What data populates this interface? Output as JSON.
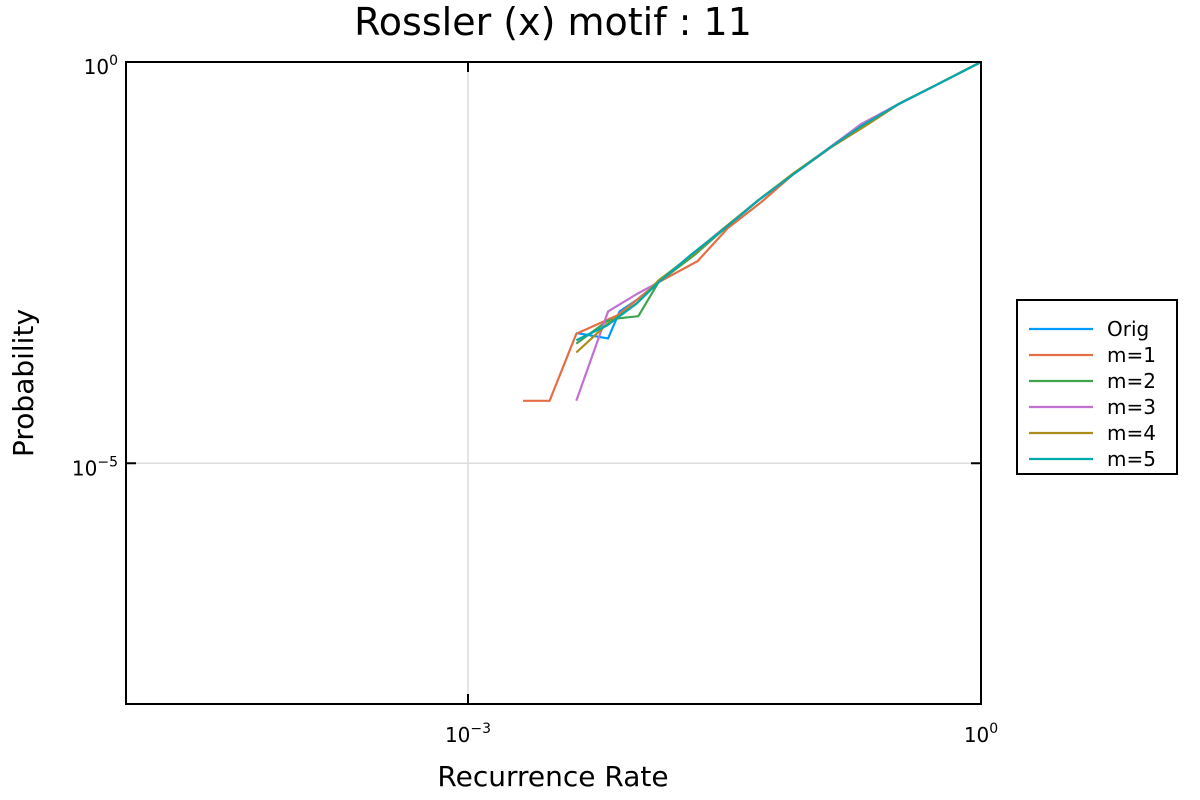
{
  "chart_data": {
    "type": "line",
    "title": "Rossler (x) motif : 11",
    "xlabel": "Recurrence Rate",
    "ylabel": "Probability",
    "xscale": "log",
    "yscale": "log",
    "xlim": [
      1e-05,
      1.0
    ],
    "ylim": [
      1e-08,
      1.0
    ],
    "grid": true,
    "legend_position": "outer-right",
    "xticks": [
      {
        "base": "10",
        "exp": "−3",
        "value": 0.001
      },
      {
        "base": "10",
        "exp": "0",
        "value": 1
      }
    ],
    "yticks": [
      {
        "base": "10",
        "exp": "−5",
        "value": 1e-05
      },
      {
        "base": "10",
        "exp": "0",
        "value": 1
      }
    ],
    "series": [
      {
        "name": "Orig",
        "color": "#009AFA",
        "x": [
          0.0043,
          0.0066,
          0.0077,
          0.0098,
          0.013,
          0.02,
          0.032,
          0.05,
          0.08,
          0.13,
          0.2,
          0.33,
          0.55,
          1.0
        ],
        "y": [
          0.00042,
          0.00036,
          0.00078,
          0.0011,
          0.0018,
          0.0039,
          0.0085,
          0.019,
          0.04,
          0.084,
          0.16,
          0.3,
          0.52,
          1.0
        ]
      },
      {
        "name": "m=1",
        "color": "#E36F47",
        "x": [
          0.0021,
          0.003,
          0.0043,
          0.0075,
          0.0098,
          0.013,
          0.022,
          0.033,
          0.052,
          0.08,
          0.13,
          0.21,
          0.33,
          0.55,
          1.0
        ],
        "y": [
          6e-05,
          6e-05,
          0.00041,
          0.0007,
          0.0011,
          0.0018,
          0.0033,
          0.0085,
          0.018,
          0.04,
          0.084,
          0.16,
          0.3,
          0.52,
          1.0
        ]
      },
      {
        "name": "m=2",
        "color": "#3EA44E",
        "x": [
          0.0043,
          0.0065,
          0.0076,
          0.0099,
          0.013,
          0.021,
          0.032,
          0.05,
          0.081,
          0.13,
          0.21,
          0.33,
          0.55,
          1.0
        ],
        "y": [
          0.00031,
          0.00059,
          0.00064,
          0.00068,
          0.0018,
          0.0039,
          0.0086,
          0.019,
          0.041,
          0.085,
          0.16,
          0.3,
          0.52,
          1.0
        ]
      },
      {
        "name": "m=3",
        "color": "#C271D2",
        "x": [
          0.0043,
          0.0066,
          0.0098,
          0.013,
          0.02,
          0.032,
          0.05,
          0.08,
          0.13,
          0.2,
          0.33,
          0.55,
          1.0
        ],
        "y": [
          6e-05,
          0.00078,
          0.0013,
          0.0018,
          0.0039,
          0.0088,
          0.019,
          0.04,
          0.086,
          0.17,
          0.3,
          0.52,
          1.0
        ]
      },
      {
        "name": "m=4",
        "color": "#AC8D18",
        "x": [
          0.0043,
          0.0065,
          0.0098,
          0.013,
          0.021,
          0.032,
          0.05,
          0.08,
          0.13,
          0.21,
          0.33,
          0.55,
          1.0
        ],
        "y": [
          0.00024,
          0.00054,
          0.001,
          0.0019,
          0.0041,
          0.0088,
          0.019,
          0.041,
          0.085,
          0.16,
          0.3,
          0.52,
          1.0
        ]
      },
      {
        "name": "m=5",
        "color": "#00A9AD",
        "x": [
          0.0043,
          0.0065,
          0.0097,
          0.013,
          0.02,
          0.032,
          0.05,
          0.08,
          0.13,
          0.2,
          0.33,
          0.55,
          1.0
        ],
        "y": [
          0.00034,
          0.00052,
          0.00098,
          0.0018,
          0.0039,
          0.0086,
          0.019,
          0.04,
          0.085,
          0.16,
          0.3,
          0.52,
          1.0
        ]
      }
    ]
  }
}
